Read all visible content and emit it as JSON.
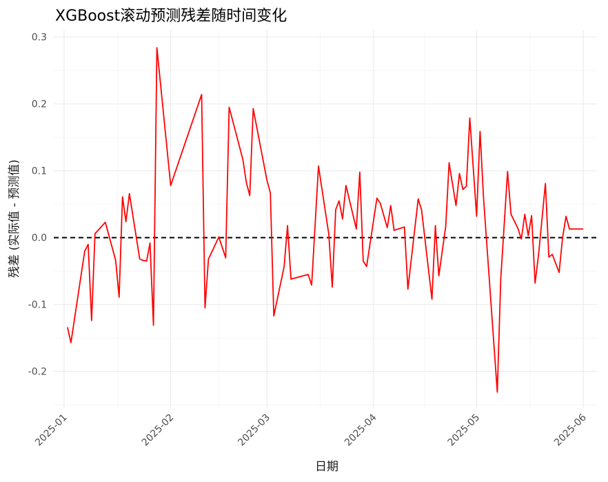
{
  "chart_data": {
    "type": "line",
    "title": "XGBoost滚动预测残差随时间变化",
    "xlabel": "日期",
    "ylabel": "残差 (实际值 - 预测值)",
    "x_ticks": [
      "2025-01",
      "2025-02",
      "2025-03",
      "2025-04",
      "2025-05",
      "2025-06"
    ],
    "y_ticks": [
      "-0.2",
      "-0.1",
      "0.0",
      "0.1",
      "0.2",
      "0.3"
    ],
    "xlim": [
      "2024-12-29",
      "2025-06-05"
    ],
    "ylim": [
      -0.255,
      0.31
    ],
    "grid": true,
    "reference_line": {
      "y": 0,
      "style": "dashed",
      "color": "#000000"
    },
    "series": [
      {
        "color": "#ff0000",
        "x": [
          "2025-01-02",
          "2025-01-03",
          "2025-01-07",
          "2025-01-08",
          "2025-01-09",
          "2025-01-10",
          "2025-01-13",
          "2025-01-16",
          "2025-01-17",
          "2025-01-18",
          "2025-01-19",
          "2025-01-20",
          "2025-01-23",
          "2025-01-24",
          "2025-01-25",
          "2025-01-26",
          "2025-01-27",
          "2025-01-28",
          "2025-02-01",
          "2025-02-10",
          "2025-02-11",
          "2025-02-12",
          "2025-02-15",
          "2025-02-17",
          "2025-02-18",
          "2025-02-22",
          "2025-02-23",
          "2025-02-24",
          "2025-02-25",
          "2025-03-01",
          "2025-03-02",
          "2025-03-03",
          "2025-03-06",
          "2025-03-07",
          "2025-03-08",
          "2025-03-13",
          "2025-03-14",
          "2025-03-16",
          "2025-03-19",
          "2025-03-20",
          "2025-03-21",
          "2025-03-22",
          "2025-03-23",
          "2025-03-24",
          "2025-03-27",
          "2025-03-28",
          "2025-03-29",
          "2025-03-30",
          "2025-04-02",
          "2025-04-03",
          "2025-04-05",
          "2025-04-06",
          "2025-04-07",
          "2025-04-10",
          "2025-04-11",
          "2025-04-14",
          "2025-04-15",
          "2025-04-18",
          "2025-04-19",
          "2025-04-20",
          "2025-04-22",
          "2025-04-23",
          "2025-04-25",
          "2025-04-26",
          "2025-04-27",
          "2025-04-28",
          "2025-04-29",
          "2025-05-01",
          "2025-05-02",
          "2025-05-03",
          "2025-05-07",
          "2025-05-08",
          "2025-05-10",
          "2025-05-11",
          "2025-05-13",
          "2025-05-14",
          "2025-05-15",
          "2025-05-16",
          "2025-05-17",
          "2025-05-18",
          "2025-05-19",
          "2025-05-21",
          "2025-05-22",
          "2025-05-23",
          "2025-05-25",
          "2025-05-26",
          "2025-05-27",
          "2025-05-28",
          "2025-05-30",
          "2025-05-31",
          "2025-06-01"
        ],
        "y": [
          -0.134,
          -0.157,
          -0.02,
          -0.01,
          -0.124,
          0.006,
          0.023,
          -0.034,
          -0.089,
          0.061,
          0.024,
          0.066,
          -0.032,
          -0.034,
          -0.035,
          -0.008,
          -0.131,
          0.284,
          0.078,
          0.214,
          -0.105,
          -0.032,
          0.001,
          -0.03,
          0.195,
          0.117,
          0.083,
          0.063,
          0.193,
          0.086,
          0.067,
          -0.117,
          -0.043,
          0.018,
          -0.062,
          -0.055,
          -0.071,
          0.107,
          0.005,
          -0.074,
          0.042,
          0.055,
          0.028,
          0.078,
          0.013,
          0.098,
          -0.035,
          -0.043,
          0.059,
          0.051,
          0.015,
          0.048,
          0.011,
          0.016,
          -0.077,
          0.058,
          0.041,
          -0.092,
          0.018,
          -0.057,
          0.017,
          0.112,
          0.048,
          0.096,
          0.072,
          0.077,
          0.179,
          0.032,
          0.159,
          0.06,
          -0.231,
          -0.062,
          0.099,
          0.035,
          0.014,
          -0.002,
          0.035,
          0.003,
          0.033,
          -0.068,
          -0.026,
          0.081,
          -0.029,
          -0.025,
          -0.052,
          0.0,
          0.032,
          0.013,
          0.013,
          0.013,
          0.013
        ]
      }
    ]
  }
}
